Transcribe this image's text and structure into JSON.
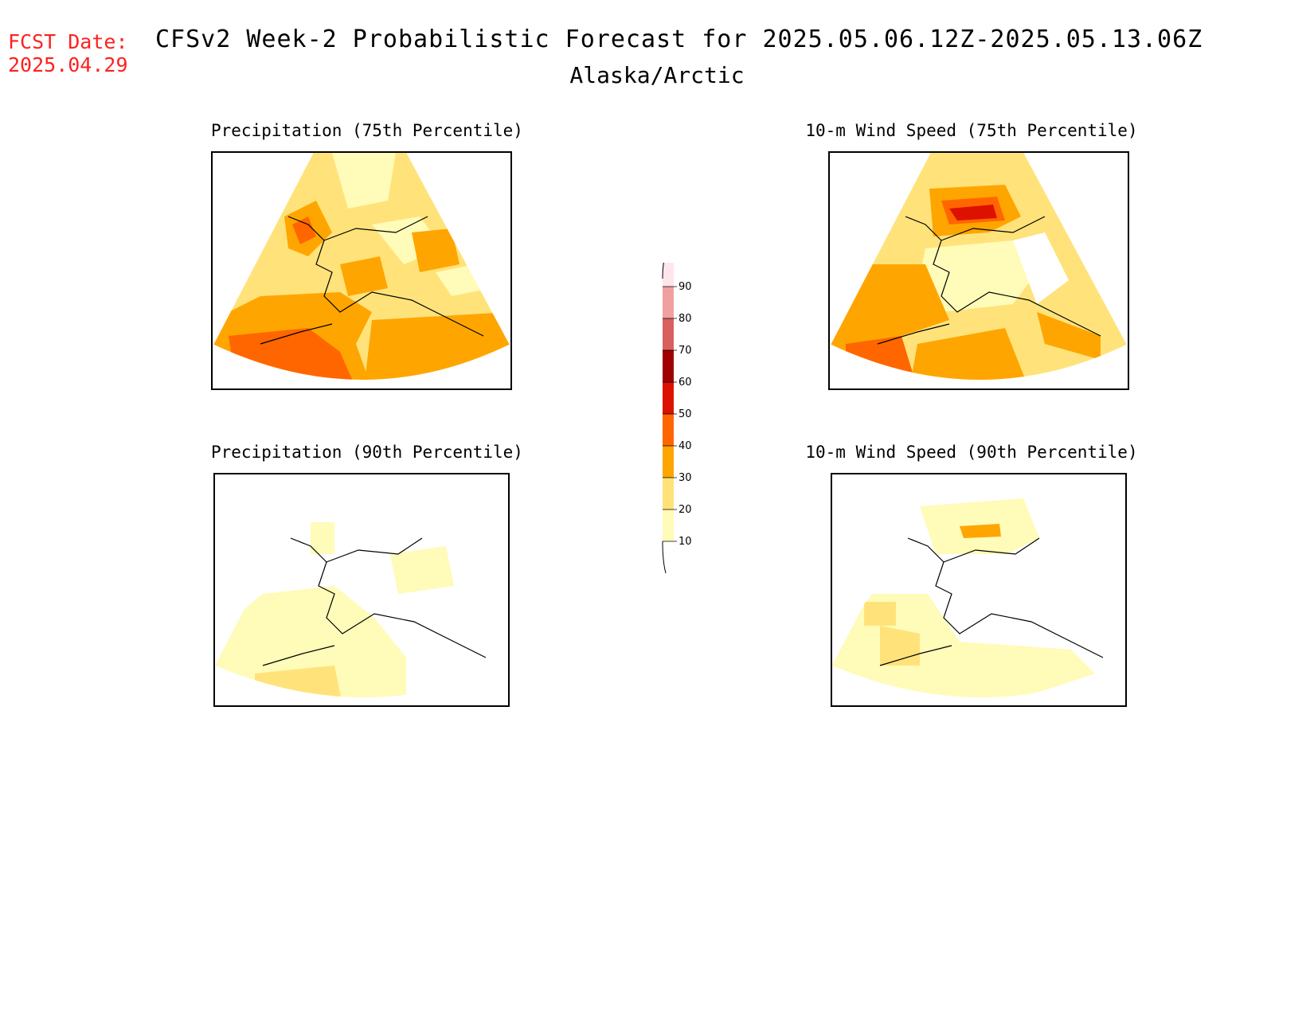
{
  "header": {
    "fcst_label": "FCST Date:",
    "fcst_date": "2025.04.29",
    "title": "CFSv2 Week-2 Probabilistic Forecast for 2025.05.06.12Z-2025.05.13.06Z",
    "subtitle": "Alaska/Arctic"
  },
  "panels": [
    {
      "id": "precip-75",
      "title": "Precipitation (75th Percentile)"
    },
    {
      "id": "wind-75",
      "title": "10-m Wind Speed (75th Percentile)"
    },
    {
      "id": "precip-90",
      "title": "Precipitation (90th Percentile)"
    },
    {
      "id": "wind-90",
      "title": "10-m Wind Speed (90th Percentile)"
    }
  ],
  "legend": {
    "levels": [
      10,
      20,
      30,
      40,
      50,
      60,
      70,
      80,
      90
    ],
    "colors": [
      "#fffbb8",
      "#ffe37a",
      "#ffa500",
      "#ff6600",
      "#dd1100",
      "#a00000",
      "#d86060",
      "#f0a0a0",
      "#ffe6ec"
    ]
  }
}
